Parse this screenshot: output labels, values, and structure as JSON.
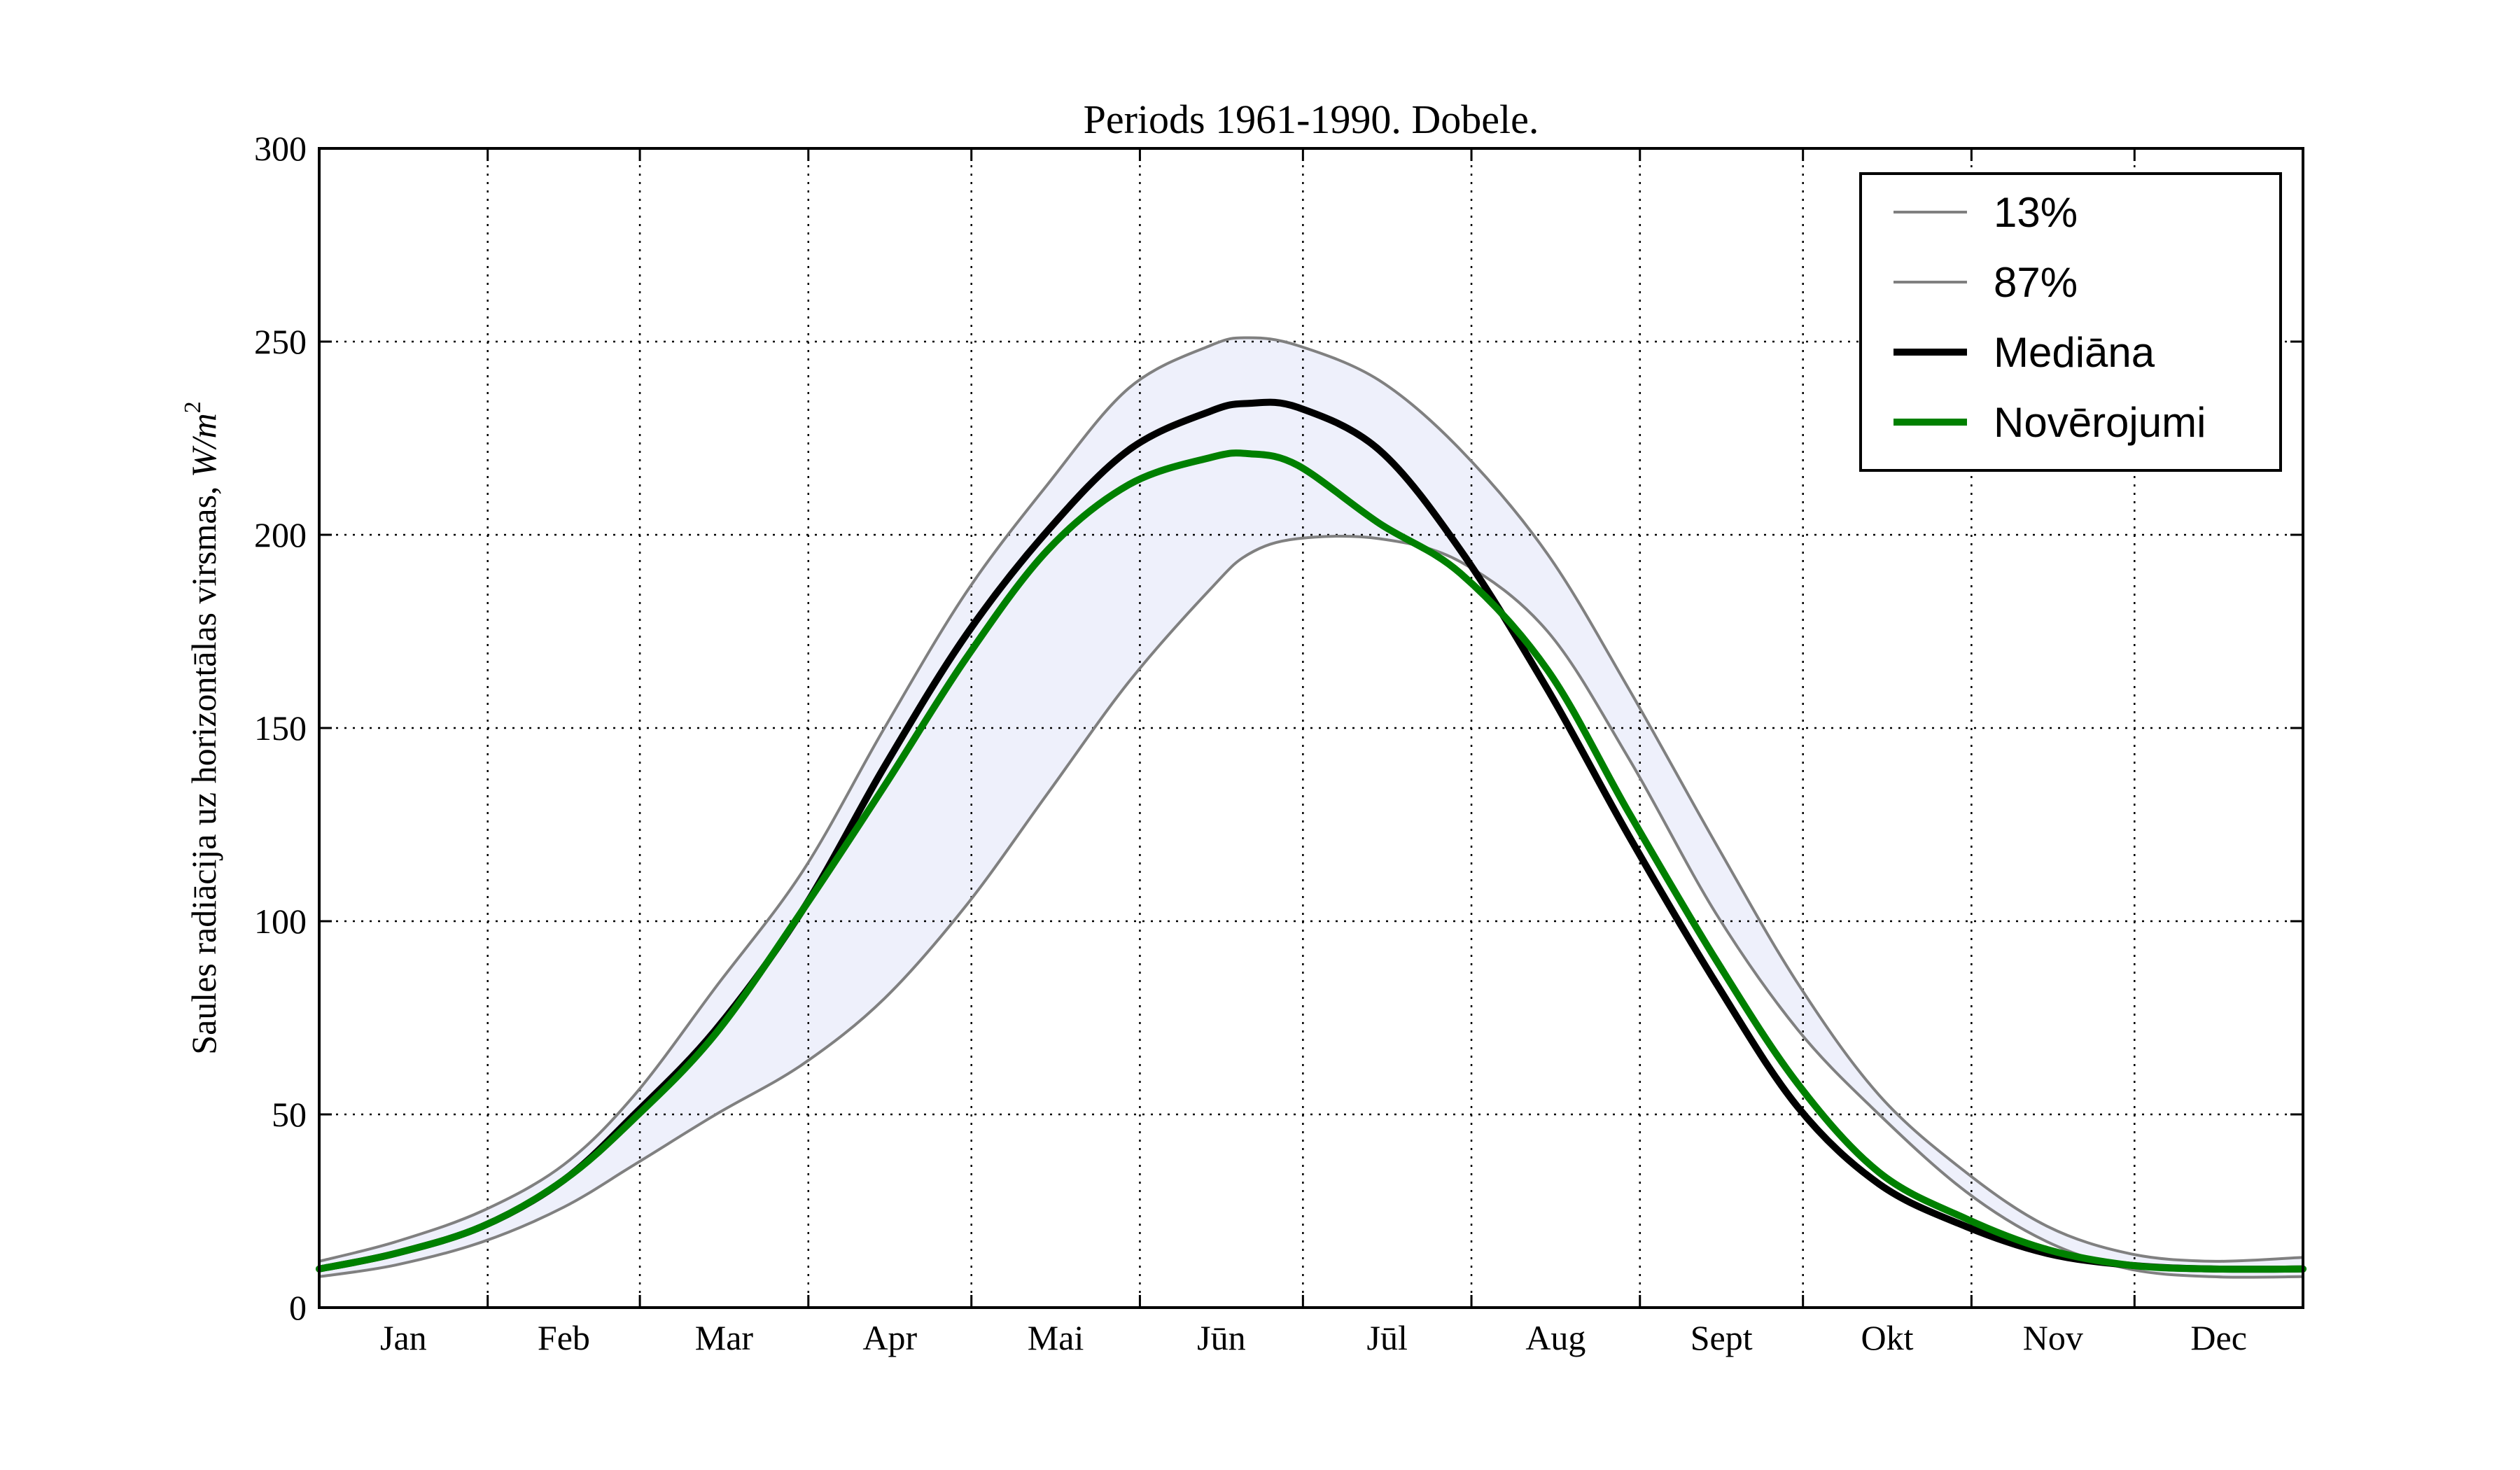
{
  "chart_data": {
    "type": "line",
    "title": "Periods 1961-1990. Dobele.",
    "ylabel_text": "Saules radiācija uz horizontālas virsmas, ",
    "ylabel_units_main": "W/m",
    "ylabel_units_sup": "2",
    "ylim": [
      0,
      300
    ],
    "yticks": [
      0,
      50,
      100,
      150,
      200,
      250,
      300
    ],
    "months": [
      "Jan",
      "Feb",
      "Mar",
      "Apr",
      "Mai",
      "Jūn",
      "Jūl",
      "Aug",
      "Sept",
      "Okt",
      "Nov",
      "Dec"
    ],
    "month_days": [
      31,
      28,
      31,
      30,
      31,
      30,
      31,
      31,
      30,
      31,
      30,
      31
    ],
    "x_range_days": [
      1,
      366
    ],
    "grid": true,
    "legend_position": "top-right",
    "band_color": "#eef0fb",
    "series": [
      {
        "name": "13%",
        "color": "#808080",
        "width": 4,
        "key": "p13",
        "x": [
          1,
          15,
          31,
          46,
          59,
          74,
          90,
          105,
          120,
          135,
          150,
          165,
          172,
          181,
          196,
          211,
          227,
          242,
          258,
          273,
          288,
          304,
          319,
          334,
          349,
          366
        ],
        "y": [
          8,
          11,
          17,
          26,
          37,
          50,
          63,
          80,
          104,
          133,
          162,
          186,
          195,
          199,
          199,
          193,
          175,
          142,
          102,
          72,
          50,
          30,
          17,
          10,
          8,
          8
        ]
      },
      {
        "name": "87%",
        "color": "#808080",
        "width": 4,
        "key": "p87",
        "x": [
          1,
          15,
          31,
          46,
          59,
          74,
          90,
          105,
          120,
          135,
          150,
          165,
          172,
          181,
          196,
          211,
          227,
          242,
          258,
          273,
          288,
          304,
          319,
          334,
          349,
          366
        ],
        "y": [
          12,
          17,
          25,
          37,
          55,
          83,
          113,
          150,
          185,
          213,
          238,
          249,
          251,
          249,
          240,
          222,
          195,
          160,
          120,
          84,
          55,
          35,
          21,
          14,
          12,
          13
        ]
      },
      {
        "name": "Mediāna",
        "color": "#000000",
        "width": 10,
        "key": "median",
        "x": [
          1,
          15,
          31,
          46,
          59,
          74,
          90,
          105,
          120,
          135,
          150,
          165,
          172,
          181,
          196,
          211,
          227,
          242,
          258,
          273,
          288,
          304,
          319,
          334,
          349,
          366
        ],
        "y": [
          10,
          14,
          21,
          33,
          50,
          72,
          103,
          140,
          174,
          201,
          222,
          232,
          234,
          233,
          222,
          196,
          160,
          122,
          84,
          52,
          32,
          21,
          14,
          11,
          10,
          10
        ]
      },
      {
        "name": "Novērojumi",
        "color": "#008000",
        "width": 10,
        "key": "obs",
        "x": [
          1,
          15,
          31,
          46,
          59,
          74,
          90,
          105,
          120,
          135,
          150,
          165,
          172,
          181,
          196,
          211,
          227,
          242,
          258,
          273,
          288,
          304,
          319,
          334,
          349,
          366
        ],
        "y": [
          10,
          14,
          21,
          33,
          49,
          71,
          103,
          135,
          168,
          196,
          213,
          220,
          221,
          218,
          203,
          190,
          165,
          128,
          90,
          58,
          35,
          23,
          15,
          11,
          10,
          10
        ]
      }
    ]
  }
}
